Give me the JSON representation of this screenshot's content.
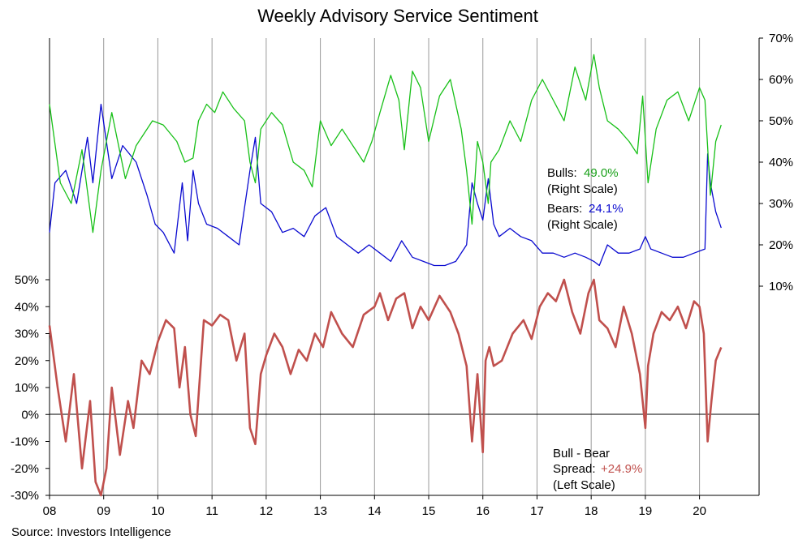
{
  "chart_data": {
    "type": "line",
    "title": "Weekly Advisory Service Sentiment",
    "source": "Source:  Investors  Intelligence",
    "x_ticks": [
      "08",
      "09",
      "10",
      "11",
      "12",
      "13",
      "14",
      "15",
      "16",
      "17",
      "18",
      "19",
      "20"
    ],
    "x_range": [
      2008.0,
      2021.1
    ],
    "right_axis": {
      "ticks": [
        "10%",
        "20%",
        "30%",
        "40%",
        "50%",
        "60%",
        "70%"
      ],
      "range": [
        0,
        70
      ],
      "unit": "%"
    },
    "left_axis": {
      "ticks": [
        "50%",
        "40%",
        "30%",
        "20%",
        "10%",
        "0%",
        "-10%",
        "-20%",
        "-30%"
      ],
      "range": [
        -30,
        50
      ],
      "unit": "%"
    },
    "grid": "vertical lines at each year",
    "colors": {
      "bulls": "#18c018",
      "bears": "#0a0ad0",
      "spread": "#c0504d",
      "grid": "#9a9a9a",
      "axis": "#000000"
    },
    "series": [
      {
        "name": "Bulls",
        "axis": "right",
        "x": [
          2008.0,
          2008.2,
          2008.4,
          2008.6,
          2008.8,
          2008.95,
          2009.15,
          2009.4,
          2009.6,
          2009.9,
          2010.1,
          2010.35,
          2010.5,
          2010.65,
          2010.75,
          2010.9,
          2011.05,
          2011.2,
          2011.4,
          2011.6,
          2011.7,
          2011.8,
          2011.9,
          2012.1,
          2012.3,
          2012.5,
          2012.7,
          2012.85,
          2013.0,
          2013.2,
          2013.4,
          2013.6,
          2013.8,
          2013.95,
          2014.1,
          2014.3,
          2014.45,
          2014.55,
          2014.7,
          2014.85,
          2015.0,
          2015.2,
          2015.4,
          2015.6,
          2015.7,
          2015.8,
          2015.9,
          2016.0,
          2016.1,
          2016.15,
          2016.3,
          2016.5,
          2016.7,
          2016.9,
          2017.1,
          2017.3,
          2017.5,
          2017.7,
          2017.9,
          2018.05,
          2018.15,
          2018.3,
          2018.5,
          2018.7,
          2018.85,
          2018.95,
          2019.05,
          2019.2,
          2019.4,
          2019.6,
          2019.8,
          2020.0,
          2020.1,
          2020.2,
          2020.3,
          2020.4
        ],
        "values": [
          54,
          35,
          30,
          43,
          23,
          38,
          52,
          36,
          44,
          50,
          49,
          45,
          40,
          41,
          50,
          54,
          52,
          57,
          53,
          50,
          40,
          35,
          48,
          52,
          49,
          40,
          38,
          34,
          50,
          44,
          48,
          44,
          40,
          45,
          52,
          61,
          55,
          43,
          62,
          58,
          45,
          56,
          60,
          48,
          38,
          25,
          45,
          40,
          30,
          40,
          43,
          50,
          45,
          55,
          60,
          55,
          50,
          63,
          55,
          66,
          58,
          50,
          48,
          45,
          42,
          56,
          35,
          48,
          55,
          57,
          50,
          58,
          55,
          32,
          45,
          49.0
        ]
      },
      {
        "name": "Bears",
        "axis": "right",
        "x": [
          2008.0,
          2008.1,
          2008.3,
          2008.5,
          2008.7,
          2008.8,
          2008.95,
          2009.15,
          2009.35,
          2009.6,
          2009.8,
          2009.95,
          2010.1,
          2010.3,
          2010.45,
          2010.55,
          2010.65,
          2010.75,
          2010.9,
          2011.1,
          2011.3,
          2011.5,
          2011.7,
          2011.8,
          2011.9,
          2012.1,
          2012.3,
          2012.5,
          2012.7,
          2012.9,
          2013.1,
          2013.3,
          2013.5,
          2013.7,
          2013.9,
          2014.1,
          2014.3,
          2014.5,
          2014.7,
          2014.9,
          2015.1,
          2015.3,
          2015.5,
          2015.7,
          2015.8,
          2015.9,
          2016.0,
          2016.1,
          2016.2,
          2016.3,
          2016.5,
          2016.7,
          2016.9,
          2017.1,
          2017.3,
          2017.5,
          2017.7,
          2017.9,
          2018.05,
          2018.15,
          2018.3,
          2018.5,
          2018.7,
          2018.9,
          2019.0,
          2019.1,
          2019.3,
          2019.5,
          2019.7,
          2019.9,
          2020.1,
          2020.15,
          2020.2,
          2020.3,
          2020.4
        ],
        "values": [
          23,
          35,
          38,
          30,
          46,
          35,
          54,
          36,
          44,
          40,
          32,
          25,
          23,
          18,
          35,
          21,
          38,
          30,
          25,
          24,
          22,
          20,
          38,
          46,
          30,
          28,
          23,
          24,
          22,
          27,
          29,
          22,
          20,
          18,
          20,
          18,
          16,
          21,
          17,
          16,
          15,
          15,
          16,
          20,
          35,
          30,
          26,
          36,
          25,
          22,
          24,
          22,
          21,
          18,
          18,
          17,
          18,
          17,
          16,
          15,
          20,
          18,
          18,
          19,
          22,
          19,
          18,
          17,
          17,
          18,
          19,
          42,
          35,
          28,
          24.1
        ]
      },
      {
        "name": "Spread",
        "axis": "left",
        "x": [
          2008.0,
          2008.15,
          2008.3,
          2008.45,
          2008.6,
          2008.75,
          2008.85,
          2008.95,
          2009.05,
          2009.15,
          2009.3,
          2009.45,
          2009.55,
          2009.7,
          2009.85,
          2010.0,
          2010.15,
          2010.3,
          2010.4,
          2010.5,
          2010.6,
          2010.7,
          2010.85,
          2011.0,
          2011.15,
          2011.3,
          2011.45,
          2011.6,
          2011.7,
          2011.8,
          2011.9,
          2012.0,
          2012.15,
          2012.3,
          2012.45,
          2012.6,
          2012.75,
          2012.9,
          2013.05,
          2013.2,
          2013.4,
          2013.6,
          2013.8,
          2014.0,
          2014.1,
          2014.25,
          2014.4,
          2014.55,
          2014.7,
          2014.85,
          2015.0,
          2015.2,
          2015.4,
          2015.55,
          2015.7,
          2015.8,
          2015.9,
          2016.0,
          2016.05,
          2016.12,
          2016.2,
          2016.35,
          2016.55,
          2016.75,
          2016.9,
          2017.05,
          2017.2,
          2017.35,
          2017.5,
          2017.65,
          2017.8,
          2017.95,
          2018.05,
          2018.15,
          2018.3,
          2018.45,
          2018.6,
          2018.75,
          2018.9,
          2019.0,
          2019.05,
          2019.15,
          2019.3,
          2019.45,
          2019.6,
          2019.75,
          2019.9,
          2020.0,
          2020.08,
          2020.15,
          2020.22,
          2020.3,
          2020.4
        ],
        "values": [
          33,
          10,
          -10,
          15,
          -20,
          5,
          -25,
          -30,
          -20,
          10,
          -15,
          5,
          -5,
          20,
          15,
          27,
          35,
          32,
          10,
          25,
          0,
          -8,
          35,
          33,
          37,
          35,
          20,
          30,
          -5,
          -11,
          15,
          22,
          30,
          25,
          15,
          24,
          20,
          30,
          25,
          38,
          30,
          25,
          37,
          40,
          45,
          35,
          43,
          45,
          32,
          40,
          35,
          44,
          38,
          30,
          18,
          -10,
          15,
          -14,
          20,
          25,
          18,
          20,
          30,
          35,
          28,
          40,
          45,
          42,
          50,
          38,
          30,
          45,
          50,
          35,
          32,
          25,
          40,
          30,
          15,
          -5,
          18,
          30,
          38,
          35,
          40,
          32,
          42,
          40,
          30,
          -10,
          5,
          20,
          24.9
        ]
      }
    ],
    "annotations": {
      "bulls_label": "Bulls:",
      "bulls_value": "49.0%",
      "bulls_scale": "(Right Scale)",
      "bears_label": "Bears:",
      "bears_value": "24.1%",
      "bears_scale": "(Right Scale)",
      "spread_line1": "Bull - Bear",
      "spread_label": "Spread:",
      "spread_value": "+24.9%",
      "spread_scale": "(Left Scale)"
    }
  }
}
